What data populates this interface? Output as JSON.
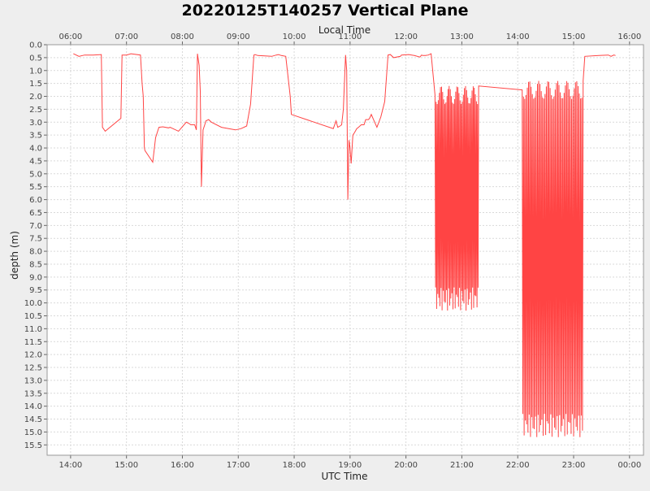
{
  "chart_data": {
    "type": "line",
    "title": "20220125T140257 Vertical Plane",
    "top_axis_label": "Local Time",
    "xlabel": "UTC Time",
    "ylabel": "depth (m)",
    "y_inverted": true,
    "grid": true,
    "xlim_utc_hours": [
      13.58,
      24.25
    ],
    "ylim": [
      0.0,
      15.9
    ],
    "x_ticks_utc": [
      "14:00",
      "15:00",
      "16:00",
      "17:00",
      "18:00",
      "19:00",
      "20:00",
      "21:00",
      "22:00",
      "23:00",
      "00:00"
    ],
    "x_ticks_local": [
      "06:00",
      "07:00",
      "08:00",
      "09:00",
      "10:00",
      "11:00",
      "12:00",
      "13:00",
      "14:00",
      "15:00",
      "16:00"
    ],
    "y_ticks": [
      "0.0",
      "0.5",
      "1.0",
      "1.5",
      "2.0",
      "2.5",
      "3.0",
      "3.5",
      "4.0",
      "4.5",
      "5.0",
      "5.5",
      "6.0",
      "6.5",
      "7.0",
      "7.5",
      "8.0",
      "8.5",
      "9.0",
      "9.5",
      "10.0",
      "10.5",
      "11.0",
      "11.5",
      "12.0",
      "12.5",
      "13.0",
      "13.5",
      "14.0",
      "14.5",
      "15.0",
      "15.5"
    ],
    "colors": {
      "series": "#ff4444",
      "grid": "#d9d9d9",
      "plot_bg": "#ffffff",
      "page_bg": "#eeeeee"
    },
    "series": [
      {
        "utc_hours": [
          14.05,
          14.15,
          14.25,
          14.4,
          14.55,
          14.57,
          14.62,
          14.9,
          14.92,
          15.0,
          15.08,
          15.25,
          15.28,
          15.3,
          15.32,
          15.33,
          15.47,
          15.52,
          15.58,
          15.65,
          15.75,
          15.78,
          15.83,
          15.93,
          16.07,
          16.12,
          16.15,
          16.22,
          16.25,
          16.27,
          16.3,
          16.32,
          16.34,
          16.37,
          16.4,
          16.42,
          16.47,
          16.52,
          16.7,
          16.95,
          17.05,
          17.15,
          17.22,
          17.28,
          17.3,
          17.35,
          17.6,
          17.68,
          17.72,
          17.77,
          17.85,
          17.93,
          17.95,
          18.7,
          18.75,
          18.78,
          18.82,
          18.85,
          18.88,
          18.92,
          18.94,
          18.96,
          18.98,
          19.0,
          19.02,
          19.05,
          19.08,
          19.12,
          19.15,
          19.2,
          19.25,
          19.28,
          19.33,
          19.35,
          19.38,
          19.42,
          19.48,
          19.55,
          19.62,
          19.68,
          19.72,
          19.78,
          19.9,
          19.92,
          20.05,
          20.15,
          20.25,
          20.28,
          20.3,
          20.35,
          20.4,
          20.45
        ],
        "depth_m": [
          0.35,
          0.45,
          0.4,
          0.4,
          0.38,
          3.2,
          3.35,
          2.85,
          0.4,
          0.4,
          0.35,
          0.4,
          1.5,
          2.0,
          4.0,
          4.1,
          4.55,
          3.6,
          3.2,
          3.18,
          3.22,
          3.2,
          3.25,
          3.35,
          3.0,
          3.05,
          3.1,
          3.1,
          3.3,
          0.35,
          0.8,
          1.8,
          5.5,
          3.3,
          3.1,
          2.95,
          2.9,
          3.0,
          3.2,
          3.3,
          3.25,
          3.15,
          2.3,
          0.4,
          0.38,
          0.42,
          0.45,
          0.4,
          0.38,
          0.42,
          0.45,
          2.0,
          2.7,
          3.25,
          2.95,
          3.2,
          3.15,
          3.1,
          2.5,
          0.4,
          1.0,
          6.0,
          3.7,
          4.0,
          4.6,
          3.5,
          3.4,
          3.25,
          3.2,
          3.1,
          3.1,
          2.9,
          2.9,
          2.85,
          2.7,
          2.9,
          3.2,
          2.8,
          2.2,
          0.4,
          0.38,
          0.5,
          0.45,
          0.4,
          0.38,
          0.42,
          0.48,
          0.4,
          0.42,
          0.42,
          0.4,
          0.35
        ],
        "bursts": [
          {
            "start_utc": 20.52,
            "end_utc": 21.3,
            "cycles": 40,
            "depth_range_m": [
              1.6,
              10.3
            ]
          },
          {
            "start_utc": 22.08,
            "end_utc": 23.17,
            "cycles": 48,
            "depth_range_m": [
              1.4,
              15.2
            ]
          }
        ],
        "tail_utc": [
          23.2,
          23.45,
          23.62,
          23.67,
          23.72,
          23.75
        ],
        "tail_depth_m": [
          0.45,
          0.42,
          0.4,
          0.45,
          0.4,
          0.42
        ]
      }
    ]
  }
}
